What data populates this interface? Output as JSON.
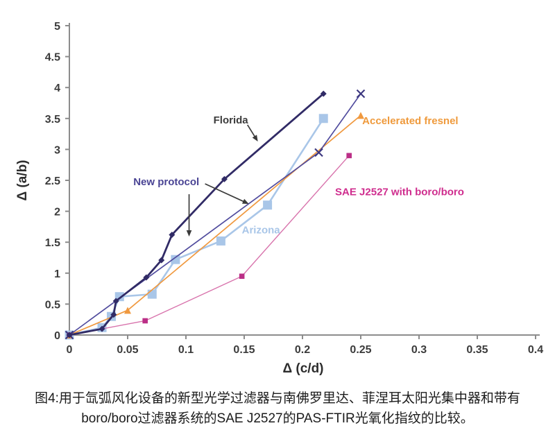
{
  "figure": {
    "caption_line1": "图4:用于氙弧风化设备的新型光学过滤器与南佛罗里达、菲涅耳太阳光集中器和带有",
    "caption_line2": "boro/boro过滤器系统的SAE J2527的PAS-FTIR光氧化指纹的比较。"
  },
  "chart_data": {
    "type": "line",
    "title": "",
    "xlabel": "Δ (c/d)",
    "ylabel": "Δ (a/b)",
    "xlim": [
      0,
      0.4
    ],
    "ylim": [
      0,
      5
    ],
    "grid": false,
    "legend_position": "inline-annotations",
    "axis_color": "#8c8c8c",
    "tick_label_color": "#3b3b3b",
    "annotation_arrow_color": "#3b3b3b",
    "x_tick_values": [
      0,
      0.05,
      0.1,
      0.15,
      0.2,
      0.25,
      0.3,
      0.35,
      0.4
    ],
    "x_tick_labels": [
      "0",
      "0.05",
      "0.1",
      "0.15",
      "0.2",
      "0.25",
      "0.3",
      "0.35",
      "0.4"
    ],
    "y_tick_values": [
      0,
      0.5,
      1,
      1.5,
      2,
      2.5,
      3,
      3.5,
      4,
      4.5,
      5
    ],
    "y_tick_labels": [
      "0",
      "0.5",
      "1",
      "1.5",
      "2",
      "2.5",
      "3",
      "3.5",
      "4",
      "4.5",
      "5"
    ],
    "series": [
      {
        "name": "Arizona",
        "color": "#a9c6e8",
        "marker": "square",
        "marker_color": "#a9c6e8",
        "marker_size": 6.5,
        "line_width": 2.6,
        "points": [
          [
            0,
            0
          ],
          [
            0.028,
            0.12
          ],
          [
            0.036,
            0.3
          ],
          [
            0.043,
            0.62
          ],
          [
            0.071,
            0.66
          ],
          [
            0.091,
            1.22
          ],
          [
            0.13,
            1.52
          ],
          [
            0.17,
            2.1
          ],
          [
            0.218,
            3.5
          ]
        ]
      },
      {
        "name": "SAE J2527 with boro/boro",
        "color": "#d873ac",
        "marker": "square",
        "marker_color": "#bb2f87",
        "marker_size": 3.8,
        "line_width": 1.4,
        "points": [
          [
            0,
            0
          ],
          [
            0.065,
            0.23
          ],
          [
            0.148,
            0.95
          ],
          [
            0.24,
            2.9
          ]
        ]
      },
      {
        "name": "Accelerated fresnel",
        "color": "#f0993f",
        "marker": "triangle",
        "marker_color": "#f0993f",
        "marker_size": 5,
        "line_width": 1.7,
        "points": [
          [
            0,
            0
          ],
          [
            0.05,
            0.4
          ],
          [
            0.25,
            3.55
          ]
        ]
      },
      {
        "name": "New protocol",
        "color": "#514c9e",
        "marker": "x",
        "marker_color": "#3d3880",
        "marker_size": 5.5,
        "line_width": 1.7,
        "points": [
          [
            0,
            0
          ],
          [
            0.214,
            2.95
          ],
          [
            0.25,
            3.9
          ]
        ]
      },
      {
        "name": "Florida",
        "color": "#312b66",
        "marker": "diamond",
        "marker_color": "#312b66",
        "marker_size": 4.5,
        "line_width": 2.8,
        "points": [
          [
            0,
            0
          ],
          [
            0.028,
            0.1
          ],
          [
            0.038,
            0.33
          ],
          [
            0.04,
            0.55
          ],
          [
            0.066,
            0.93
          ],
          [
            0.079,
            1.21
          ],
          [
            0.088,
            1.62
          ],
          [
            0.133,
            2.52
          ],
          [
            0.218,
            3.9
          ]
        ]
      }
    ],
    "annotations": [
      {
        "id": "florida-label",
        "text": "Florida",
        "color": "#3b3b3b",
        "x": 0.1236,
        "y": 3.42,
        "anchor": "start",
        "arrows": [
          {
            "from": [
              0.1528,
              3.397
            ],
            "to": [
              0.1617,
              3.128
            ]
          }
        ]
      },
      {
        "id": "new-protocol-label",
        "text": "New protocol",
        "color": "#4a4494",
        "x": 0.0549,
        "y": 2.42,
        "anchor": "start",
        "arrows": [
          {
            "from": [
              0.1164,
              2.444
            ],
            "to": [
              0.154,
              2.119
            ]
          },
          {
            "from": [
              0.1027,
              2.276
            ],
            "to": [
              0.1027,
              1.592
            ]
          }
        ]
      },
      {
        "id": "accelerated-fresnel-label",
        "text": "Accelerated fresnel",
        "color": "#ef9a3c",
        "x": 0.2513,
        "y": 3.41,
        "anchor": "start",
        "arrows": []
      },
      {
        "id": "arizona-label",
        "text": "Arizona",
        "color": "#a9c6e8",
        "x": 0.148,
        "y": 1.64,
        "anchor": "start",
        "arrows": []
      },
      {
        "id": "sae-label",
        "text": "SAE J2527 with boro/boro",
        "color": "#cf2d8e",
        "x": 0.228,
        "y": 2.26,
        "anchor": "start",
        "arrows": []
      }
    ]
  }
}
